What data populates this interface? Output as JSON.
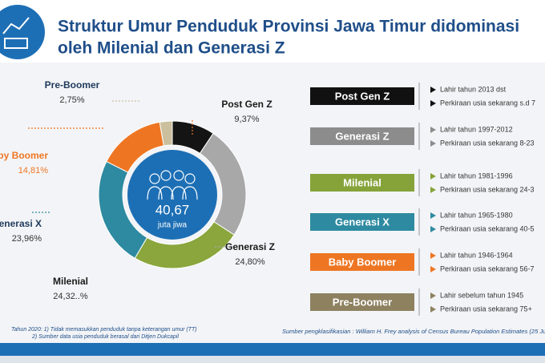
{
  "header": {
    "title_lines": [
      "Struktur Umur Penduduk Provinsi Jawa Timur didominasi",
      "oleh Milenial dan Generasi Z"
    ]
  },
  "chart_data": {
    "type": "donut",
    "categories": [
      "Post Gen Z",
      "Generasi Z",
      "Milenial",
      "Generasi X",
      "Baby Boomer",
      "Pre-Boomer"
    ],
    "values": [
      9.37,
      24.8,
      24.32,
      23.96,
      14.81,
      2.75
    ],
    "value_labels": [
      "9,37%",
      "24,80%",
      "24,32..%",
      "23,96%",
      "14,81%",
      "2,75%"
    ],
    "colors": [
      "#141414",
      "#a8a8a8",
      "#8aa63c",
      "#2e8aa1",
      "#ee7623",
      "#cbbf9e"
    ],
    "center_value": "40,67",
    "center_unit": "juta jiwa"
  },
  "generations": [
    {
      "name": "Post Gen Z",
      "color": "#111111",
      "lines": [
        "Lahir tahun 2013 dst",
        "Perkiraan usia sekarang s.d 7"
      ]
    },
    {
      "name": "Generasi Z",
      "color": "#8c8c8c",
      "lines": [
        "Lahir tahun 1997-2012",
        "Perkiraan usia sekarang 8-23"
      ]
    },
    {
      "name": "Milenial",
      "color": "#86a33a",
      "lines": [
        "Lahir tahun 1981-1996",
        "Perkiraan usia sekarang 24-3"
      ]
    },
    {
      "name": "Generasi X",
      "color": "#2e8aa1",
      "lines": [
        "Lahir tahun 1965-1980",
        "Perkiraan usia sekarang 40-5"
      ]
    },
    {
      "name": "Baby Boomer",
      "color": "#ee7623",
      "lines": [
        "Lahir tahun 1946-1964",
        "Perkiraan usia sekarang 56-7"
      ]
    },
    {
      "name": "Pre-Boomer",
      "color": "#8d8160",
      "lines": [
        "Lahir sebelum tahun 1945",
        "Perkiraan usia sekarang 75+"
      ]
    }
  ],
  "footnotes": {
    "left": [
      "Tahun 2020: 1)  Tidak memasukkan penduduk tanpa keterangan umur (TT)",
      "2) Sumber data usia penduduk berasal dari Ditjen Dukcapil"
    ],
    "source": "Sumber pengklasifikasian : William H. Frey analysis of Census Bureau Population Estimates (25 Ju"
  }
}
